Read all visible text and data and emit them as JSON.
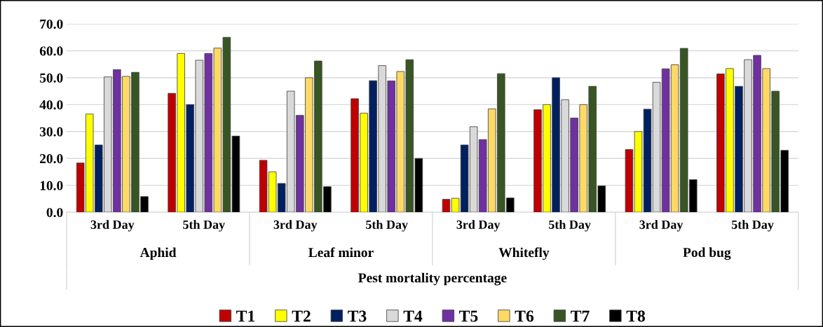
{
  "chart_data": {
    "type": "bar",
    "xlabel": "Pest mortality percentage",
    "categories": [
      "3rd Day",
      "5th Day",
      "3rd Day",
      "5th Day",
      "3rd Day",
      "5th Day",
      "3rd Day",
      "5th Day"
    ],
    "annotations": [
      "Aphid",
      "Leaf minor",
      "Whitefly",
      "Pod bug"
    ],
    "series": [
      {
        "name": "T1",
        "color": "#c00000",
        "values": [
          18.3,
          44.2,
          19.3,
          42.2,
          4.8,
          38.1,
          23.3,
          51.4
        ]
      },
      {
        "name": "T2",
        "color": "#ffff00",
        "values": [
          36.5,
          59.0,
          15.0,
          36.8,
          5.2,
          40.0,
          30.0,
          53.4
        ]
      },
      {
        "name": "T3",
        "color": "#002060",
        "values": [
          25.0,
          40.0,
          10.7,
          48.9,
          25.0,
          50.0,
          38.3,
          46.8
        ]
      },
      {
        "name": "T4",
        "color": "#d9d9d9",
        "values": [
          50.3,
          56.5,
          45.0,
          54.5,
          31.8,
          41.8,
          48.3,
          56.7
        ]
      },
      {
        "name": "T5",
        "color": "#7030a0",
        "values": [
          53.0,
          59.0,
          36.0,
          48.8,
          27.0,
          35.0,
          53.3,
          58.3
        ]
      },
      {
        "name": "T6",
        "color": "#ffd966",
        "values": [
          50.5,
          61.0,
          50.0,
          52.3,
          38.4,
          40.0,
          54.8,
          53.4
        ]
      },
      {
        "name": "T7",
        "color": "#375623",
        "values": [
          52.0,
          65.0,
          56.2,
          56.7,
          51.5,
          46.8,
          60.9,
          45.0
        ]
      },
      {
        "name": "T8",
        "color": "#000000",
        "values": [
          5.8,
          28.3,
          9.5,
          20.0,
          5.3,
          9.8,
          12.1,
          23.0
        ]
      }
    ],
    "ylim": [
      0,
      70
    ],
    "yticks": [
      {
        "value": 0,
        "label": "0.0"
      },
      {
        "value": 10,
        "label": "10.0"
      },
      {
        "value": 20,
        "label": "20.0"
      },
      {
        "value": 30,
        "label": "30.0"
      },
      {
        "value": 40,
        "label": "40.0"
      },
      {
        "value": 50,
        "label": "50.0"
      },
      {
        "value": 60,
        "label": "60.0"
      },
      {
        "value": 70,
        "label": "70.0"
      }
    ],
    "grid": "y",
    "legend": "bottom"
  }
}
